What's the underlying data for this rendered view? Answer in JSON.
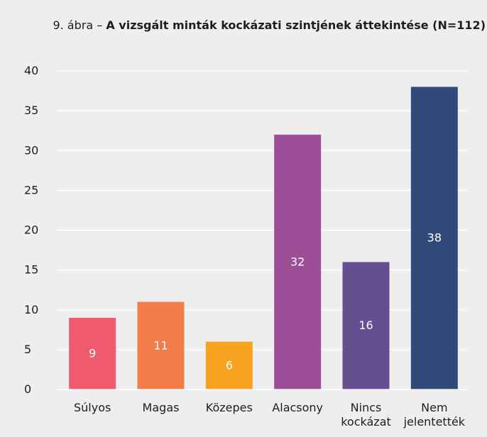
{
  "figure": {
    "title_prefix": "9. ábra – ",
    "title_main": "A vizsgált minták kockázati szintjének áttekintése (N=112)"
  },
  "chart_data": {
    "type": "bar",
    "title": "9. ábra – A vizsgált minták kockázati szintjének áttekintése (N=112)",
    "categories": [
      [
        "Súlyos"
      ],
      [
        "Magas"
      ],
      [
        "Közepes"
      ],
      [
        "Alacsony"
      ],
      [
        "Nincs",
        "kockázat"
      ],
      [
        "Nem",
        "jelentették"
      ]
    ],
    "values": [
      9,
      11,
      6,
      32,
      16,
      38
    ],
    "colors": [
      "#f05a6e",
      "#f27d4b",
      "#f7a31f",
      "#9c4f97",
      "#654f91",
      "#314a7a"
    ],
    "data_labels": [
      "9",
      "11",
      "6",
      "32",
      "16",
      "38"
    ],
    "ylim": [
      0,
      40
    ],
    "yticks": [
      0,
      5,
      10,
      15,
      20,
      25,
      30,
      35,
      40
    ],
    "grid": true,
    "xlabel": "",
    "ylabel": ""
  }
}
